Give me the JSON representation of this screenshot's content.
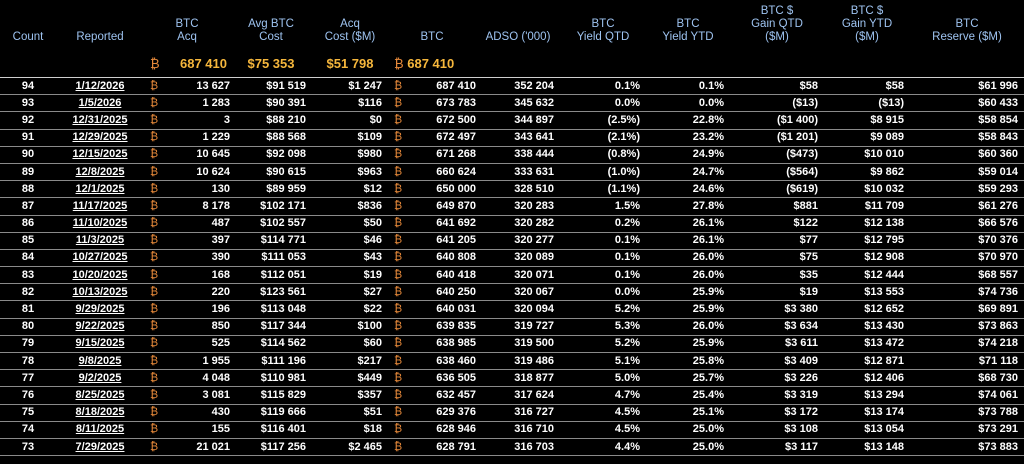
{
  "headers": {
    "count": "Count",
    "reported": "Reported",
    "btc_acq": [
      "BTC",
      "Acq"
    ],
    "avg_btc_cost": [
      "Avg BTC",
      "Cost"
    ],
    "acq_cost": [
      "Acq",
      "Cost ($M)"
    ],
    "btc": "BTC",
    "adso": "ADSO ('000)",
    "btc_yield_qtd": [
      "BTC",
      "Yield QTD"
    ],
    "btc_yield_ytd": [
      "BTC",
      "Yield YTD"
    ],
    "gain_qtd": [
      "BTC $",
      "Gain QTD",
      "($M)"
    ],
    "gain_ytd": [
      "BTC $",
      "Gain YTD",
      "($M)"
    ],
    "reserve": [
      "BTC",
      "Reserve ($M)"
    ]
  },
  "btc_symbol": "₿",
  "summary": {
    "btc_acq": "687 410",
    "avg_btc_cost": "$75 353",
    "acq_cost": "$51 798",
    "btc": "687 410"
  },
  "rows": [
    {
      "count": "94",
      "reported": "1/12/2026",
      "btc_acq": "13 627",
      "avg_cost": "$91 519",
      "acq_cost": "$1 247",
      "btc": "687 410",
      "adso": "352 204",
      "yield_qtd": "0.1%",
      "yield_ytd": "0.1%",
      "gain_qtd": "$58",
      "gain_ytd": "$58",
      "reserve": "$61 996"
    },
    {
      "count": "93",
      "reported": "1/5/2026",
      "btc_acq": "1 283",
      "avg_cost": "$90 391",
      "acq_cost": "$116",
      "btc": "673 783",
      "adso": "345 632",
      "yield_qtd": "0.0%",
      "yield_ytd": "0.0%",
      "gain_qtd": "($13)",
      "gain_ytd": "($13)",
      "reserve": "$60 433"
    },
    {
      "count": "92",
      "reported": "12/31/2025",
      "btc_acq": "3",
      "avg_cost": "$88 210",
      "acq_cost": "$0",
      "btc": "672 500",
      "adso": "344 897",
      "yield_qtd": "(2.5%)",
      "yield_ytd": "22.8%",
      "gain_qtd": "($1 400)",
      "gain_ytd": "$8 915",
      "reserve": "$58 854"
    },
    {
      "count": "91",
      "reported": "12/29/2025",
      "btc_acq": "1 229",
      "avg_cost": "$88 568",
      "acq_cost": "$109",
      "btc": "672 497",
      "adso": "343 641",
      "yield_qtd": "(2.1%)",
      "yield_ytd": "23.2%",
      "gain_qtd": "($1 201)",
      "gain_ytd": "$9 089",
      "reserve": "$58 843"
    },
    {
      "count": "90",
      "reported": "12/15/2025",
      "btc_acq": "10 645",
      "avg_cost": "$92 098",
      "acq_cost": "$980",
      "btc": "671 268",
      "adso": "338 444",
      "yield_qtd": "(0.8%)",
      "yield_ytd": "24.9%",
      "gain_qtd": "($473)",
      "gain_ytd": "$10 010",
      "reserve": "$60 360"
    },
    {
      "count": "89",
      "reported": "12/8/2025",
      "btc_acq": "10 624",
      "avg_cost": "$90 615",
      "acq_cost": "$963",
      "btc": "660 624",
      "adso": "333 631",
      "yield_qtd": "(1.0%)",
      "yield_ytd": "24.7%",
      "gain_qtd": "($564)",
      "gain_ytd": "$9 862",
      "reserve": "$59 014"
    },
    {
      "count": "88",
      "reported": "12/1/2025",
      "btc_acq": "130",
      "avg_cost": "$89 959",
      "acq_cost": "$12",
      "btc": "650 000",
      "adso": "328 510",
      "yield_qtd": "(1.1%)",
      "yield_ytd": "24.6%",
      "gain_qtd": "($619)",
      "gain_ytd": "$10 032",
      "reserve": "$59 293"
    },
    {
      "count": "87",
      "reported": "11/17/2025",
      "btc_acq": "8 178",
      "avg_cost": "$102 171",
      "acq_cost": "$836",
      "btc": "649 870",
      "adso": "320 283",
      "yield_qtd": "1.5%",
      "yield_ytd": "27.8%",
      "gain_qtd": "$881",
      "gain_ytd": "$11 709",
      "reserve": "$61 276"
    },
    {
      "count": "86",
      "reported": "11/10/2025",
      "btc_acq": "487",
      "avg_cost": "$102 557",
      "acq_cost": "$50",
      "btc": "641 692",
      "adso": "320 282",
      "yield_qtd": "0.2%",
      "yield_ytd": "26.1%",
      "gain_qtd": "$122",
      "gain_ytd": "$12 138",
      "reserve": "$66 576"
    },
    {
      "count": "85",
      "reported": "11/3/2025",
      "btc_acq": "397",
      "avg_cost": "$114 771",
      "acq_cost": "$46",
      "btc": "641 205",
      "adso": "320 277",
      "yield_qtd": "0.1%",
      "yield_ytd": "26.1%",
      "gain_qtd": "$77",
      "gain_ytd": "$12 795",
      "reserve": "$70 376"
    },
    {
      "count": "84",
      "reported": "10/27/2025",
      "btc_acq": "390",
      "avg_cost": "$111 053",
      "acq_cost": "$43",
      "btc": "640 808",
      "adso": "320 089",
      "yield_qtd": "0.1%",
      "yield_ytd": "26.0%",
      "gain_qtd": "$75",
      "gain_ytd": "$12 908",
      "reserve": "$70 970"
    },
    {
      "count": "83",
      "reported": "10/20/2025",
      "btc_acq": "168",
      "avg_cost": "$112 051",
      "acq_cost": "$19",
      "btc": "640 418",
      "adso": "320 071",
      "yield_qtd": "0.1%",
      "yield_ytd": "26.0%",
      "gain_qtd": "$35",
      "gain_ytd": "$12 444",
      "reserve": "$68 557"
    },
    {
      "count": "82",
      "reported": "10/13/2025",
      "btc_acq": "220",
      "avg_cost": "$123 561",
      "acq_cost": "$27",
      "btc": "640 250",
      "adso": "320 067",
      "yield_qtd": "0.0%",
      "yield_ytd": "25.9%",
      "gain_qtd": "$19",
      "gain_ytd": "$13 553",
      "reserve": "$74 736"
    },
    {
      "count": "81",
      "reported": "9/29/2025",
      "btc_acq": "196",
      "avg_cost": "$113 048",
      "acq_cost": "$22",
      "btc": "640 031",
      "adso": "320 094",
      "yield_qtd": "5.2%",
      "yield_ytd": "25.9%",
      "gain_qtd": "$3 380",
      "gain_ytd": "$12 652",
      "reserve": "$69 891"
    },
    {
      "count": "80",
      "reported": "9/22/2025",
      "btc_acq": "850",
      "avg_cost": "$117 344",
      "acq_cost": "$100",
      "btc": "639 835",
      "adso": "319 727",
      "yield_qtd": "5.3%",
      "yield_ytd": "26.0%",
      "gain_qtd": "$3 634",
      "gain_ytd": "$13 430",
      "reserve": "$73 863"
    },
    {
      "count": "79",
      "reported": "9/15/2025",
      "btc_acq": "525",
      "avg_cost": "$114 562",
      "acq_cost": "$60",
      "btc": "638 985",
      "adso": "319 500",
      "yield_qtd": "5.2%",
      "yield_ytd": "25.9%",
      "gain_qtd": "$3 611",
      "gain_ytd": "$13 472",
      "reserve": "$74 218"
    },
    {
      "count": "78",
      "reported": "9/8/2025",
      "btc_acq": "1 955",
      "avg_cost": "$111 196",
      "acq_cost": "$217",
      "btc": "638 460",
      "adso": "319 486",
      "yield_qtd": "5.1%",
      "yield_ytd": "25.8%",
      "gain_qtd": "$3 409",
      "gain_ytd": "$12 871",
      "reserve": "$71 118"
    },
    {
      "count": "77",
      "reported": "9/2/2025",
      "btc_acq": "4 048",
      "avg_cost": "$110 981",
      "acq_cost": "$449",
      "btc": "636 505",
      "adso": "318 877",
      "yield_qtd": "5.0%",
      "yield_ytd": "25.7%",
      "gain_qtd": "$3 226",
      "gain_ytd": "$12 406",
      "reserve": "$68 730"
    },
    {
      "count": "76",
      "reported": "8/25/2025",
      "btc_acq": "3 081",
      "avg_cost": "$115 829",
      "acq_cost": "$357",
      "btc": "632 457",
      "adso": "317 624",
      "yield_qtd": "4.7%",
      "yield_ytd": "25.4%",
      "gain_qtd": "$3 319",
      "gain_ytd": "$13 294",
      "reserve": "$74 061"
    },
    {
      "count": "75",
      "reported": "8/18/2025",
      "btc_acq": "430",
      "avg_cost": "$119 666",
      "acq_cost": "$51",
      "btc": "629 376",
      "adso": "316 727",
      "yield_qtd": "4.5%",
      "yield_ytd": "25.1%",
      "gain_qtd": "$3 172",
      "gain_ytd": "$13 174",
      "reserve": "$73 788"
    },
    {
      "count": "74",
      "reported": "8/11/2025",
      "btc_acq": "155",
      "avg_cost": "$116 401",
      "acq_cost": "$18",
      "btc": "628 946",
      "adso": "316 710",
      "yield_qtd": "4.5%",
      "yield_ytd": "25.0%",
      "gain_qtd": "$3 108",
      "gain_ytd": "$13 054",
      "reserve": "$73 291"
    },
    {
      "count": "73",
      "reported": "7/29/2025",
      "btc_acq": "21 021",
      "avg_cost": "$117 256",
      "acq_cost": "$2 465",
      "btc": "628 791",
      "adso": "316 703",
      "yield_qtd": "4.4%",
      "yield_ytd": "25.0%",
      "gain_qtd": "$3 117",
      "gain_ytd": "$13 148",
      "reserve": "$73 883"
    }
  ]
}
